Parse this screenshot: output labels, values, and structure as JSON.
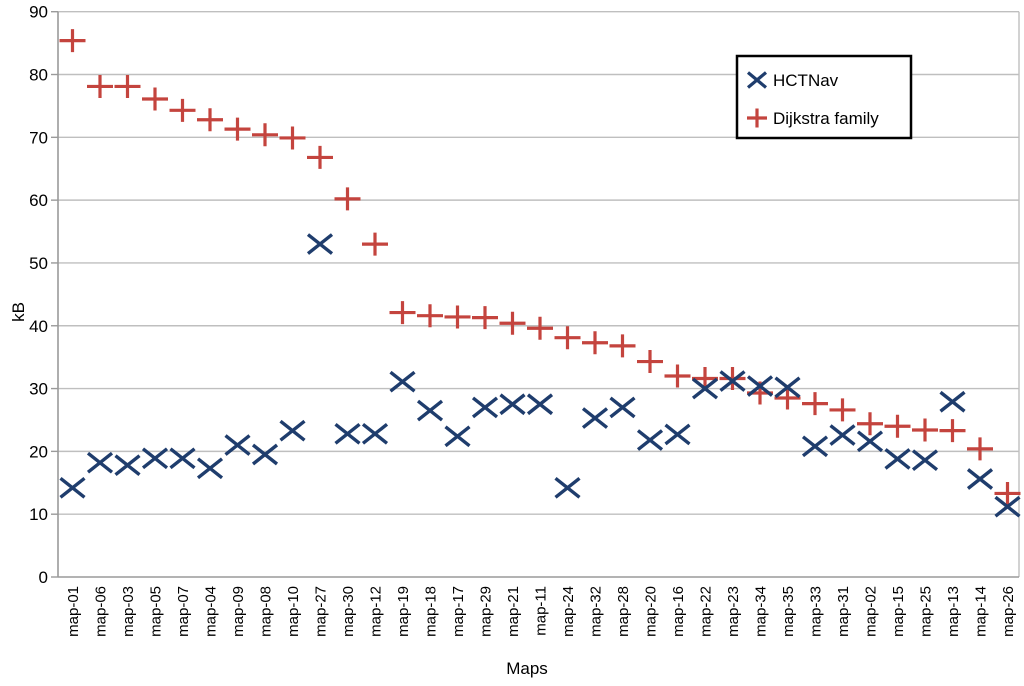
{
  "chart_data": {
    "type": "scatter",
    "title": "",
    "xlabel": "Maps",
    "ylabel": "kB",
    "ylim": [
      0,
      90
    ],
    "yticks": [
      0,
      10,
      20,
      30,
      40,
      50,
      60,
      70,
      80,
      90
    ],
    "grid": "horizontal",
    "legend_position": "top-right",
    "categories": [
      "map-01",
      "map-06",
      "map-03",
      "map-05",
      "map-07",
      "map-04",
      "map-09",
      "map-08",
      "map-10",
      "map-27",
      "map-30",
      "map-12",
      "map-19",
      "map-18",
      "map-17",
      "map-29",
      "map-21",
      "map-11",
      "map-24",
      "map-32",
      "map-28",
      "map-20",
      "map-16",
      "map-22",
      "map-23",
      "map-34",
      "map-35",
      "map-33",
      "map-31",
      "map-02",
      "map-15",
      "map-25",
      "map-13",
      "map-14",
      "map-26"
    ],
    "series": [
      {
        "name": "HCTNav",
        "marker": "x-cross",
        "color": "#1f3d6d",
        "values": [
          14.2,
          18.2,
          17.8,
          18.9,
          18.9,
          17.3,
          21.0,
          19.5,
          23.3,
          53.0,
          22.8,
          22.8,
          31.1,
          26.5,
          22.4,
          27.0,
          27.5,
          27.5,
          14.2,
          25.3,
          27.0,
          21.8,
          22.7,
          30.0,
          31.2,
          30.4,
          30.2,
          20.8,
          22.6,
          21.6,
          18.8,
          18.6,
          27.9,
          15.6,
          11.2
        ]
      },
      {
        "name": "Dijkstra family",
        "marker": "plus",
        "color": "#c4443e",
        "values": [
          85.4,
          78.1,
          78.1,
          76.1,
          74.3,
          72.8,
          71.3,
          70.4,
          69.9,
          66.8,
          60.2,
          53.0,
          42.1,
          41.6,
          41.4,
          41.3,
          40.4,
          39.6,
          38.1,
          37.3,
          36.8,
          34.3,
          32.0,
          31.6,
          31.6,
          29.3,
          28.5,
          27.6,
          26.6,
          24.4,
          24.0,
          23.4,
          23.3,
          20.4,
          13.3
        ]
      }
    ]
  },
  "colors": {
    "background": "#ffffff",
    "gridline": "#bfbfbf",
    "axis": "#9a9a9a",
    "text": "#000000",
    "legend_border": "#000000",
    "legend_background": "#ffffff"
  }
}
